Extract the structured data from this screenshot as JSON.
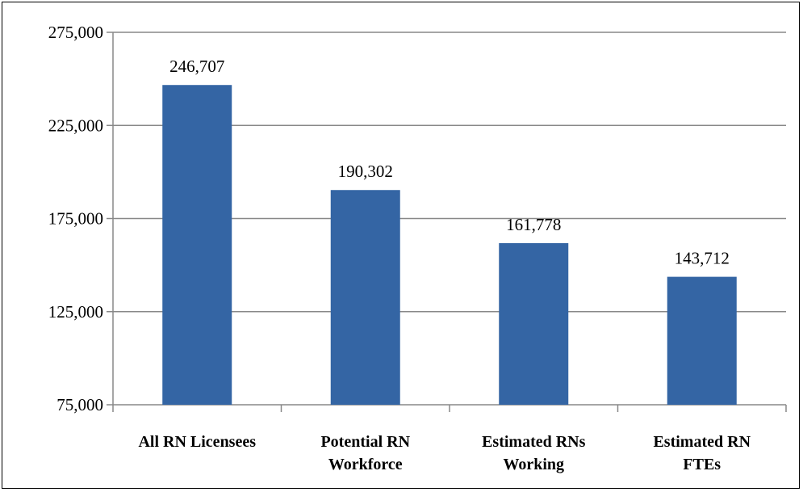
{
  "chart_data": {
    "type": "bar",
    "title": "",
    "xlabel": "",
    "ylabel": "",
    "categories": [
      [
        "All RN  Licensees"
      ],
      [
        "Potential RN",
        "Workforce"
      ],
      [
        "Estimated RNs",
        "Working"
      ],
      [
        "Estimated RN",
        "FTEs"
      ]
    ],
    "values": [
      246707,
      190302,
      161778,
      143712
    ],
    "data_labels": [
      "246,707",
      "190,302",
      "161,778",
      "143,712"
    ],
    "ylim": [
      75000,
      275000
    ],
    "yticks": [
      75000,
      125000,
      175000,
      225000,
      275000
    ],
    "ytick_labels": [
      "75,000",
      "125,000",
      "175,000",
      "225,000",
      "275,000"
    ],
    "grid": true,
    "legend": "none",
    "colors": {
      "bar": "#3465a4",
      "grid": "#888888",
      "axis": "#888888",
      "text": "#000000"
    }
  }
}
